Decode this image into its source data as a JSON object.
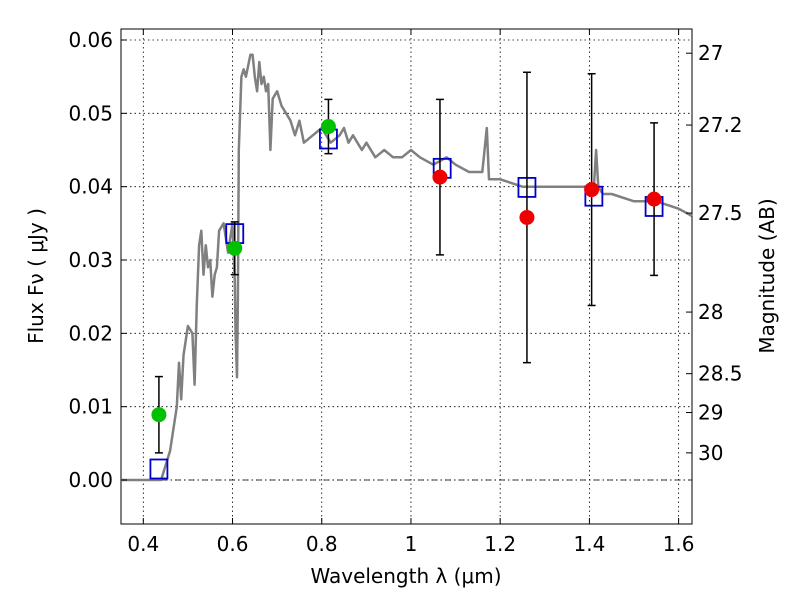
{
  "chart_data": {
    "type": "scatter",
    "xlabel": "Wavelength  λ (μm)",
    "ylabel": "Flux  Fν  ( μJy )",
    "ylabel_right": "Magnitude (AB)",
    "xlim": [
      0.35,
      1.63
    ],
    "ylim": [
      -0.006,
      0.0615
    ],
    "xticks": [
      {
        "value": 0.4,
        "label": "0.4"
      },
      {
        "value": 0.6,
        "label": "0.6"
      },
      {
        "value": 0.8,
        "label": "0.8"
      },
      {
        "value": 1.0,
        "label": "1"
      },
      {
        "value": 1.2,
        "label": "1.2"
      },
      {
        "value": 1.4,
        "label": "1.4"
      },
      {
        "value": 1.6,
        "label": "1.6"
      }
    ],
    "yticks": [
      {
        "value": 0.0,
        "label": "0.00"
      },
      {
        "value": 0.01,
        "label": "0.01"
      },
      {
        "value": 0.02,
        "label": "0.02"
      },
      {
        "value": 0.03,
        "label": "0.03"
      },
      {
        "value": 0.04,
        "label": "0.04"
      },
      {
        "value": 0.05,
        "label": "0.05"
      },
      {
        "value": 0.06,
        "label": "0.06"
      }
    ],
    "right_ticks": [
      {
        "flux": 0.0582,
        "label": "27"
      },
      {
        "flux": 0.0484,
        "label": "27.2"
      },
      {
        "flux": 0.0364,
        "label": "27.5"
      },
      {
        "flux": 0.0229,
        "label": "28"
      },
      {
        "flux": 0.0145,
        "label": "28.5"
      },
      {
        "flux": 0.0092,
        "label": "29"
      },
      {
        "flux": 0.0037,
        "label": "30"
      }
    ],
    "grid": true,
    "series": [
      {
        "kind": "line",
        "color": "#808080",
        "x": [
          0.35,
          0.44,
          0.46,
          0.475,
          0.48,
          0.485,
          0.49,
          0.5,
          0.51,
          0.515,
          0.52,
          0.525,
          0.53,
          0.535,
          0.54,
          0.545,
          0.55,
          0.555,
          0.56,
          0.565,
          0.57,
          0.58,
          0.59,
          0.595,
          0.6,
          0.605,
          0.607,
          0.61,
          0.612,
          0.614,
          0.62,
          0.625,
          0.63,
          0.64,
          0.645,
          0.65,
          0.655,
          0.66,
          0.665,
          0.67,
          0.675,
          0.68,
          0.685,
          0.69,
          0.7,
          0.71,
          0.72,
          0.73,
          0.74,
          0.75,
          0.76,
          0.78,
          0.8,
          0.82,
          0.84,
          0.85,
          0.86,
          0.87,
          0.88,
          0.89,
          0.9,
          0.92,
          0.94,
          0.96,
          0.98,
          1.0,
          1.02,
          1.05,
          1.08,
          1.1,
          1.13,
          1.15,
          1.16,
          1.17,
          1.175,
          1.18,
          1.2,
          1.25,
          1.3,
          1.35,
          1.4,
          1.41,
          1.415,
          1.42,
          1.43,
          1.45,
          1.5,
          1.55,
          1.6,
          1.63
        ],
        "y": [
          0.0,
          0.0,
          0.004,
          0.01,
          0.016,
          0.011,
          0.017,
          0.021,
          0.02,
          0.013,
          0.024,
          0.032,
          0.034,
          0.028,
          0.032,
          0.029,
          0.03,
          0.025,
          0.028,
          0.029,
          0.034,
          0.035,
          0.031,
          0.033,
          0.035,
          0.027,
          0.02,
          0.014,
          0.025,
          0.045,
          0.055,
          0.056,
          0.055,
          0.058,
          0.058,
          0.055,
          0.053,
          0.057,
          0.054,
          0.055,
          0.053,
          0.054,
          0.045,
          0.052,
          0.053,
          0.051,
          0.05,
          0.049,
          0.047,
          0.049,
          0.046,
          0.047,
          0.048,
          0.046,
          0.047,
          0.048,
          0.046,
          0.047,
          0.046,
          0.045,
          0.046,
          0.044,
          0.045,
          0.044,
          0.044,
          0.045,
          0.044,
          0.043,
          0.044,
          0.043,
          0.042,
          0.042,
          0.042,
          0.048,
          0.041,
          0.041,
          0.041,
          0.04,
          0.04,
          0.04,
          0.04,
          0.04,
          0.045,
          0.04,
          0.039,
          0.039,
          0.038,
          0.038,
          0.037,
          0.036
        ]
      },
      {
        "kind": "model_points",
        "marker": "square",
        "color": "#0000cc",
        "x": [
          0.435,
          0.605,
          0.815,
          1.07,
          1.26,
          1.41,
          1.545
        ],
        "y": [
          0.0015,
          0.0336,
          0.0465,
          0.0425,
          0.0399,
          0.0387,
          0.0373
        ]
      },
      {
        "kind": "detections",
        "marker": "circle",
        "color": "#00c000",
        "x": [
          0.435,
          0.605,
          0.815
        ],
        "y": [
          0.0089,
          0.0316,
          0.0482
        ],
        "err": [
          0.0052,
          0.0036,
          0.0037
        ]
      },
      {
        "kind": "detections",
        "marker": "circle",
        "color": "#ee0000",
        "x": [
          1.065,
          1.26,
          1.405,
          1.545
        ],
        "y": [
          0.0413,
          0.0358,
          0.0396,
          0.0383
        ],
        "err": [
          0.0106,
          0.0198,
          0.0158,
          0.0104
        ]
      }
    ]
  }
}
